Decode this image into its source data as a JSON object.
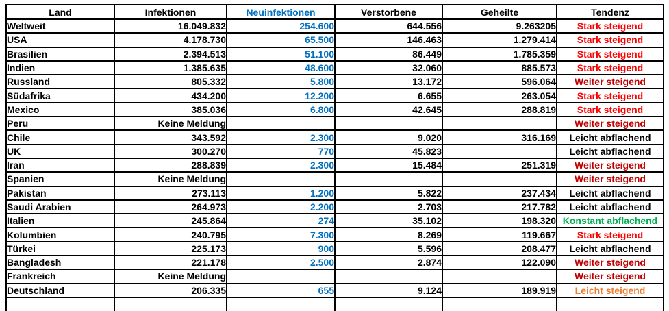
{
  "colors": {
    "neuinfektionen_text": "#0070C0",
    "tendenz_stark_steigend": "#FF0000",
    "tendenz_weiter_steigend": "#C00000",
    "tendenz_leicht_abflachend": "#000000",
    "tendenz_konstant_abflachend": "#00B050",
    "tendenz_leicht_steigend": "#ED7D31",
    "border": "#000000",
    "background": "#FFFFFF"
  },
  "table": {
    "columns": [
      {
        "key": "land",
        "label": "Land"
      },
      {
        "key": "infektionen",
        "label": "Infektionen"
      },
      {
        "key": "neuinfektionen",
        "label": "Neuinfektionen"
      },
      {
        "key": "verstorbene",
        "label": "Verstorbene"
      },
      {
        "key": "geheilte",
        "label": "Geheilte"
      },
      {
        "key": "tendenz",
        "label": "Tendenz"
      }
    ],
    "rows": [
      {
        "land": "Weltweit",
        "infektionen": "16.049.832",
        "neuinfektionen": "254.600",
        "verstorbene": "644.556",
        "geheilte": "9.263205",
        "tendenz": "Stark steigend",
        "tendenz_color": "#FF0000"
      },
      {
        "land": "USA",
        "infektionen": "4.178.730",
        "neuinfektionen": "65.500",
        "verstorbene": "146.463",
        "geheilte": "1.279.414",
        "tendenz": "Stark steigend",
        "tendenz_color": "#FF0000"
      },
      {
        "land": "Brasilien",
        "infektionen": "2.394.513",
        "neuinfektionen": "51.100",
        "verstorbene": "86.449",
        "geheilte": "1.785.359",
        "tendenz": "Stark steigend",
        "tendenz_color": "#FF0000"
      },
      {
        "land": "Indien",
        "infektionen": "1.385.635",
        "neuinfektionen": "48.600",
        "verstorbene": "32.060",
        "geheilte": "885.573",
        "tendenz": "Stark steigend",
        "tendenz_color": "#FF0000"
      },
      {
        "land": "Russland",
        "infektionen": "805.332",
        "neuinfektionen": "5.800",
        "verstorbene": "13.172",
        "geheilte": "596.064",
        "tendenz": "Weiter steigend",
        "tendenz_color": "#C00000"
      },
      {
        "land": "Südafrika",
        "infektionen": "434.200",
        "neuinfektionen": "12.200",
        "verstorbene": "6.655",
        "geheilte": "263.054",
        "tendenz": "Stark steigend",
        "tendenz_color": "#FF0000"
      },
      {
        "land": "Mexico",
        "infektionen": "385.036",
        "neuinfektionen": "6.800",
        "verstorbene": "42.645",
        "geheilte": "288.819",
        "tendenz": "Stark steigend",
        "tendenz_color": "#FF0000"
      },
      {
        "land": "Peru",
        "infektionen": "Keine Meldung",
        "neuinfektionen": "",
        "verstorbene": "",
        "geheilte": "",
        "tendenz": "Weiter steigend",
        "tendenz_color": "#C00000"
      },
      {
        "land": "Chile",
        "infektionen": "343.592",
        "neuinfektionen": "2.300",
        "verstorbene": "9.020",
        "geheilte": "316.169",
        "tendenz": "Leicht abflachend",
        "tendenz_color": "#000000"
      },
      {
        "land": "UK",
        "infektionen": "300.270",
        "neuinfektionen": "770",
        "verstorbene": "45.823",
        "geheilte": "",
        "tendenz": "Leicht abflachend",
        "tendenz_color": "#000000"
      },
      {
        "land": "Iran",
        "infektionen": "288.839",
        "neuinfektionen": "2.300",
        "verstorbene": "15.484",
        "geheilte": "251.319",
        "tendenz": "Weiter steigend",
        "tendenz_color": "#C00000"
      },
      {
        "land": "Spanien",
        "infektionen": "Keine Meldung",
        "neuinfektionen": "",
        "verstorbene": "",
        "geheilte": "",
        "tendenz": "Weiter steigend",
        "tendenz_color": "#C00000"
      },
      {
        "land": "Pakistan",
        "infektionen": "273.113",
        "neuinfektionen": "1.200",
        "verstorbene": "5.822",
        "geheilte": "237.434",
        "tendenz": "Leicht abflachend",
        "tendenz_color": "#000000"
      },
      {
        "land": "Saudi Arabien",
        "infektionen": "264.973",
        "neuinfektionen": "2.200",
        "verstorbene": "2.703",
        "geheilte": "217.782",
        "tendenz": "Leicht abflachend",
        "tendenz_color": "#000000"
      },
      {
        "land": "Italien",
        "infektionen": "245.864",
        "neuinfektionen": "274",
        "verstorbene": "35.102",
        "geheilte": "198.320",
        "tendenz": "Konstant abflachend",
        "tendenz_color": "#00B050"
      },
      {
        "land": "Kolumbien",
        "infektionen": "240.795",
        "neuinfektionen": "7.300",
        "verstorbene": "8.269",
        "geheilte": "119.667",
        "tendenz": "Stark steigend",
        "tendenz_color": "#FF0000"
      },
      {
        "land": "Türkei",
        "infektionen": "225.173",
        "neuinfektionen": "900",
        "verstorbene": "5.596",
        "geheilte": "208.477",
        "tendenz": "Leicht abflachend",
        "tendenz_color": "#000000"
      },
      {
        "land": "Bangladesh",
        "infektionen": "221.178",
        "neuinfektionen": "2.500",
        "verstorbene": "2.874",
        "geheilte": "122.090",
        "tendenz": "Weiter steigend",
        "tendenz_color": "#C00000",
        "misspelled": true
      },
      {
        "land": "Frankreich",
        "infektionen": "Keine Meldung",
        "neuinfektionen": "",
        "verstorbene": "",
        "geheilte": "",
        "tendenz": "Weiter steigend",
        "tendenz_color": "#C00000"
      },
      {
        "land": "Deutschland",
        "infektionen": "206.335",
        "neuinfektionen": "655",
        "verstorbene": "9.124",
        "geheilte": "189.919",
        "tendenz": "Leicht steigend",
        "tendenz_color": "#ED7D31"
      }
    ]
  }
}
